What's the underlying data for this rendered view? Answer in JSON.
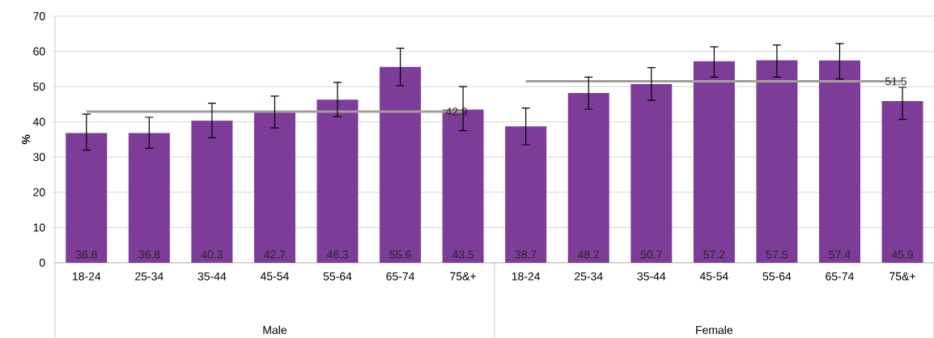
{
  "chart_data": {
    "type": "bar",
    "ylabel": "%",
    "categories": [
      "18-24",
      "25-34",
      "35-44",
      "45-54",
      "55-64",
      "65-74",
      "75&+",
      "18-24",
      "25-34",
      "35-44",
      "45-54",
      "55-64",
      "65-74",
      "75&+"
    ],
    "series": [
      {
        "color": "#7d3c98",
        "values": [
          36.8,
          36.8,
          40.3,
          42.7,
          46.3,
          55.6,
          43.5,
          38.7,
          48.2,
          50.7,
          57.2,
          57.5,
          57.4,
          45.9
        ],
        "errors": [
          [
            32.0,
            42.2
          ],
          [
            32.5,
            41.3
          ],
          [
            35.5,
            45.3
          ],
          [
            38.3,
            47.3
          ],
          [
            41.5,
            51.2
          ],
          [
            50.3,
            60.9
          ],
          [
            37.5,
            50.0
          ],
          [
            33.5,
            43.9
          ],
          [
            43.6,
            52.7
          ],
          [
            46.1,
            55.4
          ],
          [
            52.7,
            61.3
          ],
          [
            52.7,
            61.8
          ],
          [
            52.2,
            62.2
          ],
          [
            40.7,
            49.8
          ]
        ]
      },
      {
        "type": "line",
        "color": "#a39e96",
        "values": [
          42.9,
          42.9,
          42.9,
          42.9,
          42.9,
          42.9,
          42.9,
          null,
          null,
          null,
          null,
          null,
          null,
          null
        ],
        "value_labels": [
          null,
          null,
          null,
          null,
          null,
          null,
          "42.9",
          null,
          null,
          null,
          null,
          null,
          null,
          null
        ]
      },
      {
        "type": "line",
        "color": "#a39e96",
        "values": [
          null,
          null,
          null,
          null,
          null,
          null,
          null,
          51.5,
          51.5,
          51.5,
          51.5,
          51.5,
          51.5,
          51.5
        ],
        "value_labels": [
          null,
          null,
          null,
          null,
          null,
          null,
          null,
          null,
          null,
          null,
          null,
          null,
          null,
          "51.5"
        ]
      }
    ],
    "data_labels": true,
    "annotations": [
      "Male",
      "Female"
    ],
    "ylim": [
      0,
      70
    ],
    "yticks": [
      0,
      10,
      20,
      30,
      40,
      50,
      60,
      70
    ],
    "grid": "y"
  }
}
